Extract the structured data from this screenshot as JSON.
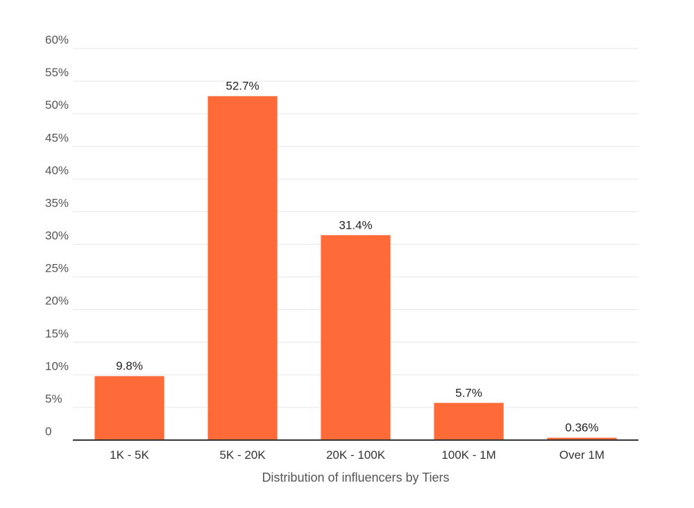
{
  "chart_data": {
    "type": "bar",
    "title": "",
    "xlabel": "Distribution of influencers by Tiers",
    "ylabel": "",
    "categories": [
      "1K - 5K",
      "5K - 20K",
      "20K - 100K",
      "100K - 1M",
      "Over 1M"
    ],
    "values": [
      9.8,
      52.7,
      31.4,
      5.7,
      0.36
    ],
    "data_labels": [
      "9.8%",
      "52.7%",
      "31.4%",
      "5.7%",
      "0.36%"
    ],
    "ylim": [
      0,
      60
    ],
    "yticks": [
      0,
      5,
      10,
      15,
      20,
      25,
      30,
      35,
      40,
      45,
      50,
      55,
      60
    ],
    "ytick_labels": [
      "0",
      "5%",
      "10%",
      "15%",
      "20%",
      "25%",
      "30%",
      "35%",
      "40%",
      "45%",
      "50%",
      "55%",
      "60%"
    ],
    "grid": true,
    "legend": "none",
    "colors": {
      "bar": "#ff6a39",
      "grid": "#e6e6e6",
      "axis": "#333333"
    }
  }
}
